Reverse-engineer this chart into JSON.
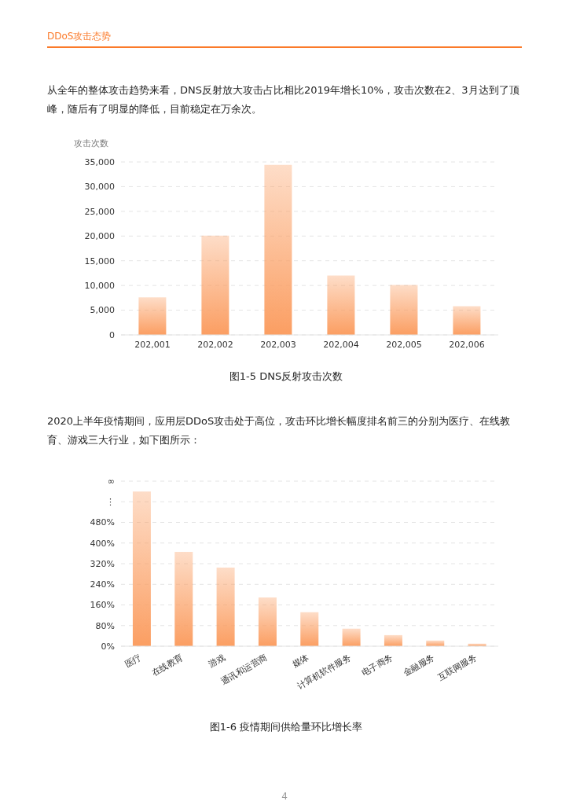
{
  "chart_data": [
    {
      "type": "bar",
      "title": "图1-5  DNS反射攻击次数",
      "ylabel": "攻击次数",
      "categories": [
        "202,001",
        "202,002",
        "202,003",
        "202,004",
        "202,005",
        "202,006"
      ],
      "values": [
        7600,
        20100,
        34400,
        12000,
        10100,
        5800
      ],
      "color": "#fb9e62",
      "ylim": [
        0,
        35000
      ],
      "yticks": [
        0,
        {
          "value": 5000,
          "label": "5,000"
        },
        {
          "value": 10000,
          "label": "10,000"
        },
        {
          "value": 15000,
          "label": "15,000"
        },
        {
          "value": 20000,
          "label": "20,000"
        },
        {
          "value": 25000,
          "label": "25,000"
        },
        {
          "value": 30000,
          "label": "30,000"
        },
        {
          "value": 35000,
          "label": "35,000"
        }
      ],
      "grid": "y",
      "annotations": [
        "DDoS攻击态势",
        "从全年的整体攻击趋势来看，DNS反射放大攻击占比相比2019年增长10%，攻击次数在2、3月达到了顶峰，随后有了明显的降低，目前稳定在万余次。"
      ]
    },
    {
      "type": "bar",
      "title": "图1-6  疫情期间供给量环比增长率",
      "categories": [
        "医疗",
        "在线教育",
        "游戏",
        "通讯和运营商",
        "媒体",
        "计算机软件服务",
        "电子商务",
        "金融服务",
        "互联网服务"
      ],
      "values": [
        600,
        366,
        305,
        189,
        132,
        68,
        43,
        22,
        10
      ],
      "color": "#fb9e62",
      "ylim": [
        0,
        640
      ],
      "yticks": [
        {
          "value": 0,
          "label": "0%"
        },
        {
          "value": 80,
          "label": "80%"
        },
        {
          "value": 160,
          "label": "160%"
        },
        {
          "value": 240,
          "label": "240%"
        },
        {
          "value": 320,
          "label": "320%"
        },
        {
          "value": 400,
          "label": "400%"
        },
        {
          "value": 480,
          "label": "480%"
        },
        {
          "value": 560,
          "label": "⋮"
        },
        {
          "value": 640,
          "label": "∞"
        }
      ],
      "grid": "y",
      "annotations": [
        "2020上半年疫情期间，应用层DDoS攻击处于高位，攻击环比增长幅度排名前三的分别为医疗、在线教育、游戏三大行业，如下图所示：",
        "4"
      ]
    }
  ]
}
